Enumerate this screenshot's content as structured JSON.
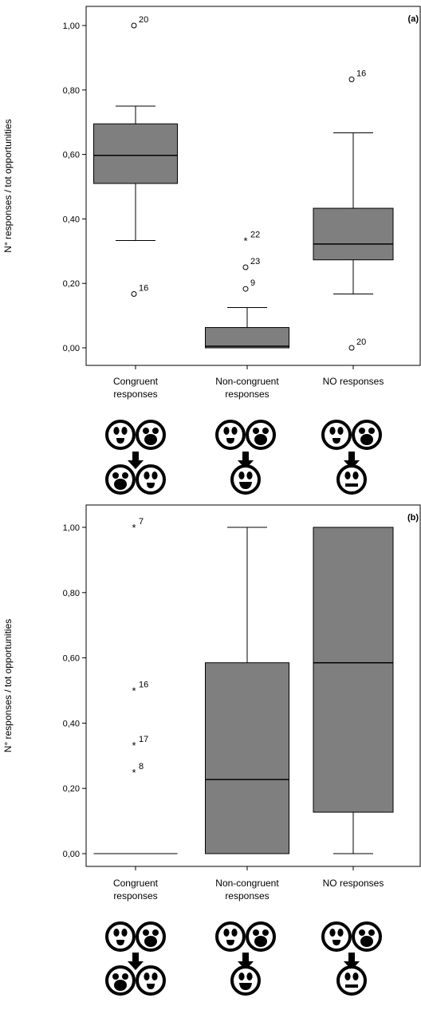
{
  "chart_data": [
    {
      "type": "box",
      "panel_label": "(a)",
      "ylabel": "N° responses / tot opportunities",
      "ylim": [
        0,
        1
      ],
      "y_ticks": [
        0,
        0.2,
        0.4,
        0.6,
        0.8,
        1.0
      ],
      "y_tick_labels": [
        "0,00",
        "0,20",
        "0,40",
        "0,60",
        "0,80",
        "1,00"
      ],
      "categories": [
        {
          "line1": "Congruent",
          "line2": "responses"
        },
        {
          "line1": "Non-congruent",
          "line2": "responses"
        },
        {
          "line1": "NO responses",
          "line2": ""
        }
      ],
      "boxes": [
        {
          "whisker_low": 0.333,
          "q1": 0.51,
          "median": 0.597,
          "q3": 0.695,
          "whisker_high": 0.75,
          "outliers": [
            {
              "value": 1.0,
              "label": "20",
              "marker": "circle"
            },
            {
              "value": 0.167,
              "label": "16",
              "marker": "circle"
            }
          ]
        },
        {
          "whisker_low": 0.0,
          "q1": 0.0,
          "median": 0.005,
          "q3": 0.063,
          "whisker_high": 0.125,
          "outliers": [
            {
              "value": 0.333,
              "label": "22",
              "marker": "star"
            },
            {
              "value": 0.25,
              "label": "23",
              "marker": "circle"
            },
            {
              "value": 0.183,
              "label": "9",
              "marker": "circle"
            }
          ]
        },
        {
          "whisker_low": 0.167,
          "q1": 0.273,
          "median": 0.322,
          "q3": 0.433,
          "whisker_high": 0.667,
          "outliers": [
            {
              "value": 0.833,
              "label": "16",
              "marker": "circle"
            },
            {
              "value": 0.0,
              "label": "20",
              "marker": "circle"
            }
          ]
        }
      ],
      "icons": [
        {
          "top": [
            "smile-open",
            "mouth-big-open"
          ],
          "bottom": [
            "mouth-big-open",
            "smile-open"
          ]
        },
        {
          "top": [
            "smile-open",
            "mouth-big-open"
          ],
          "bottom": [
            "smile-wide"
          ]
        },
        {
          "top": [
            "smile-open",
            "mouth-big-open"
          ],
          "bottom": [
            "flat-mouth"
          ]
        }
      ]
    },
    {
      "type": "box",
      "panel_label": "(b)",
      "ylabel": "N° responses / tot opportunities",
      "ylim": [
        0,
        1
      ],
      "y_ticks": [
        0,
        0.2,
        0.4,
        0.6,
        0.8,
        1.0
      ],
      "y_tick_labels": [
        "0,00",
        "0,20",
        "0,40",
        "0,60",
        "0,80",
        "1,00"
      ],
      "categories": [
        {
          "line1": "Congruent",
          "line2": "responses"
        },
        {
          "line1": "Non-congruent",
          "line2": "responses"
        },
        {
          "line1": "NO responses",
          "line2": ""
        }
      ],
      "boxes": [
        {
          "whisker_low": 0.0,
          "q1": 0.0,
          "median": 0.0,
          "q3": 0.0,
          "whisker_high": 0.0,
          "outliers": [
            {
              "value": 1.0,
              "label": "7",
              "marker": "star"
            },
            {
              "value": 0.5,
              "label": "16",
              "marker": "star"
            },
            {
              "value": 0.333,
              "label": "17",
              "marker": "star"
            },
            {
              "value": 0.25,
              "label": "8",
              "marker": "star"
            }
          ]
        },
        {
          "whisker_low": 0.0,
          "q1": 0.0,
          "median": 0.227,
          "q3": 0.585,
          "whisker_high": 1.0,
          "outliers": []
        },
        {
          "whisker_low": 0.0,
          "q1": 0.127,
          "median": 0.585,
          "q3": 1.0,
          "whisker_high": 1.0,
          "outliers": []
        }
      ],
      "icons": [
        {
          "top": [
            "smile-open",
            "mouth-big-open"
          ],
          "bottom": [
            "mouth-big-open",
            "smile-open"
          ]
        },
        {
          "top": [
            "smile-open",
            "mouth-big-open"
          ],
          "bottom": [
            "smile-wide"
          ]
        },
        {
          "top": [
            "smile-open",
            "mouth-big-open"
          ],
          "bottom": [
            "flat-mouth"
          ]
        }
      ]
    }
  ],
  "colors": {
    "box_fill": "#7f7f7f",
    "line": "#000000",
    "background": "#ffffff"
  }
}
